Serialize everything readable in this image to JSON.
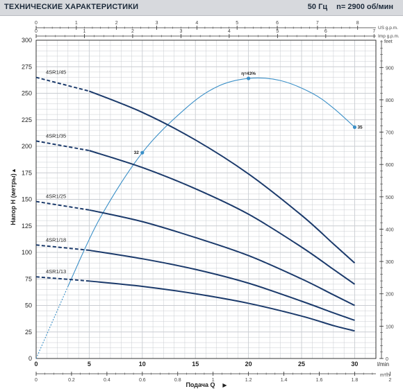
{
  "header": {
    "title": "ТЕХНИЧЕСКИЕ ХАРАКТЕРИСТИКИ",
    "frequency": "50 Гц",
    "speed": "n= 2900 об/мин"
  },
  "chart_data": {
    "type": "line",
    "title": "ТЕХНИЧЕСКИЕ ХАРАКТЕРИСТИКИ",
    "ylabel": "Напор H (метры)",
    "xlabel": "Подача Q",
    "ylim": [
      0,
      300
    ],
    "xlim": [
      0,
      32
    ],
    "y_ticks": [
      "300",
      "275",
      "250",
      "225",
      "200",
      "175",
      "150",
      "125",
      "100",
      "75",
      "50",
      "25",
      "0"
    ],
    "x_ticks": [
      "0",
      "5",
      "10",
      "15",
      "20",
      "25",
      "30"
    ],
    "x_unit": "l/min",
    "bottom_axis": {
      "unit": "m³/h",
      "ticks": [
        "0",
        "0.2",
        "0.4",
        "0.6",
        "0.8",
        "1",
        "1.2",
        "1.4",
        "1.6",
        "1.8",
        "2"
      ]
    },
    "top_axis_us": {
      "unit": "US g.p.m.",
      "ticks": [
        "0",
        "1",
        "2",
        "3",
        "4",
        "5",
        "6",
        "7",
        "8"
      ]
    },
    "top_axis_imp": {
      "unit": "Imp g.p.m.",
      "ticks": [
        "0",
        "1",
        "2",
        "3",
        "4",
        "5",
        "6",
        "7"
      ]
    },
    "right_axis": {
      "unit": "feet",
      "ticks": [
        "0",
        "100",
        "200",
        "300",
        "400",
        "500",
        "600",
        "700",
        "800",
        "900"
      ]
    },
    "grid": true,
    "series": [
      {
        "name": "4SR1/45",
        "label_y": 265,
        "dashed_end_x": 5,
        "points": [
          [
            0,
            265
          ],
          [
            5,
            252
          ],
          [
            10,
            232
          ],
          [
            15,
            206
          ],
          [
            20,
            174
          ],
          [
            25,
            135
          ],
          [
            28,
            108
          ],
          [
            30,
            90
          ]
        ]
      },
      {
        "name": "4SR1/35",
        "label_y": 205,
        "dashed_end_x": 5,
        "points": [
          [
            0,
            205
          ],
          [
            5,
            196
          ],
          [
            10,
            180
          ],
          [
            15,
            160
          ],
          [
            20,
            136
          ],
          [
            25,
            105
          ],
          [
            28,
            84
          ],
          [
            30,
            70
          ]
        ]
      },
      {
        "name": "4SR1/25",
        "label_y": 148,
        "dashed_end_x": 5,
        "points": [
          [
            0,
            148
          ],
          [
            5,
            140
          ],
          [
            10,
            129
          ],
          [
            15,
            114
          ],
          [
            20,
            97
          ],
          [
            25,
            75
          ],
          [
            28,
            60
          ],
          [
            30,
            50
          ]
        ]
      },
      {
        "name": "4SR1/18",
        "label_y": 107,
        "dashed_end_x": 5,
        "points": [
          [
            0,
            107
          ],
          [
            5,
            102
          ],
          [
            10,
            94
          ],
          [
            15,
            84
          ],
          [
            20,
            71
          ],
          [
            25,
            54
          ],
          [
            28,
            43
          ],
          [
            30,
            36
          ]
        ]
      },
      {
        "name": "4SR1/13",
        "label_y": 77,
        "dashed_end_x": 5,
        "points": [
          [
            0,
            77
          ],
          [
            5,
            73
          ],
          [
            10,
            68
          ],
          [
            15,
            61
          ],
          [
            20,
            52
          ],
          [
            25,
            40
          ],
          [
            28,
            31
          ],
          [
            30,
            26
          ]
        ]
      }
    ],
    "efficiency_curve": {
      "label": "η=43%",
      "points": [
        [
          0,
          0
        ],
        [
          3,
          68
        ],
        [
          6,
          132
        ],
        [
          10,
          194
        ],
        [
          14,
          235
        ],
        [
          17,
          256
        ],
        [
          20,
          264
        ],
        [
          23,
          262
        ],
        [
          26,
          250
        ],
        [
          28,
          236
        ],
        [
          30,
          218
        ]
      ],
      "dotted_end_x": 3,
      "markers": [
        {
          "x": 10,
          "y": 194,
          "label": "32"
        },
        {
          "x": 20,
          "y": 264,
          "label": ""
        },
        {
          "x": 30,
          "y": 218,
          "label": "35"
        }
      ]
    },
    "colors": {
      "pump": "#1b3a6b",
      "efficiency": "#3a8fc7",
      "grid": "#c9ccd1",
      "axis": "#333333"
    }
  }
}
